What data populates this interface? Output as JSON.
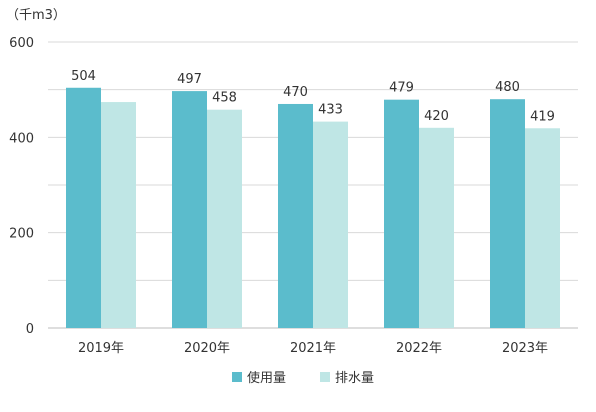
{
  "chart_data": {
    "type": "bar",
    "unit": "（千m3）",
    "categories": [
      "2019年",
      "2020年",
      "2021年",
      "2022年",
      "2023年"
    ],
    "series": [
      {
        "name": "使用量",
        "color": "#5bbccc",
        "values": [
          504,
          497,
          470,
          479,
          480
        ]
      },
      {
        "name": "排水量",
        "color": "#bfe6e5",
        "values": [
          474,
          458,
          433,
          420,
          419
        ]
      }
    ],
    "data_labels": [
      [
        "504",
        "497",
        "470",
        "479",
        "480"
      ],
      [
        "",
        "458",
        "433",
        "420",
        "419"
      ]
    ],
    "ylim": [
      0,
      600
    ],
    "yticks": [
      0,
      200,
      400,
      600
    ],
    "grid": true,
    "legend": "bottom"
  }
}
